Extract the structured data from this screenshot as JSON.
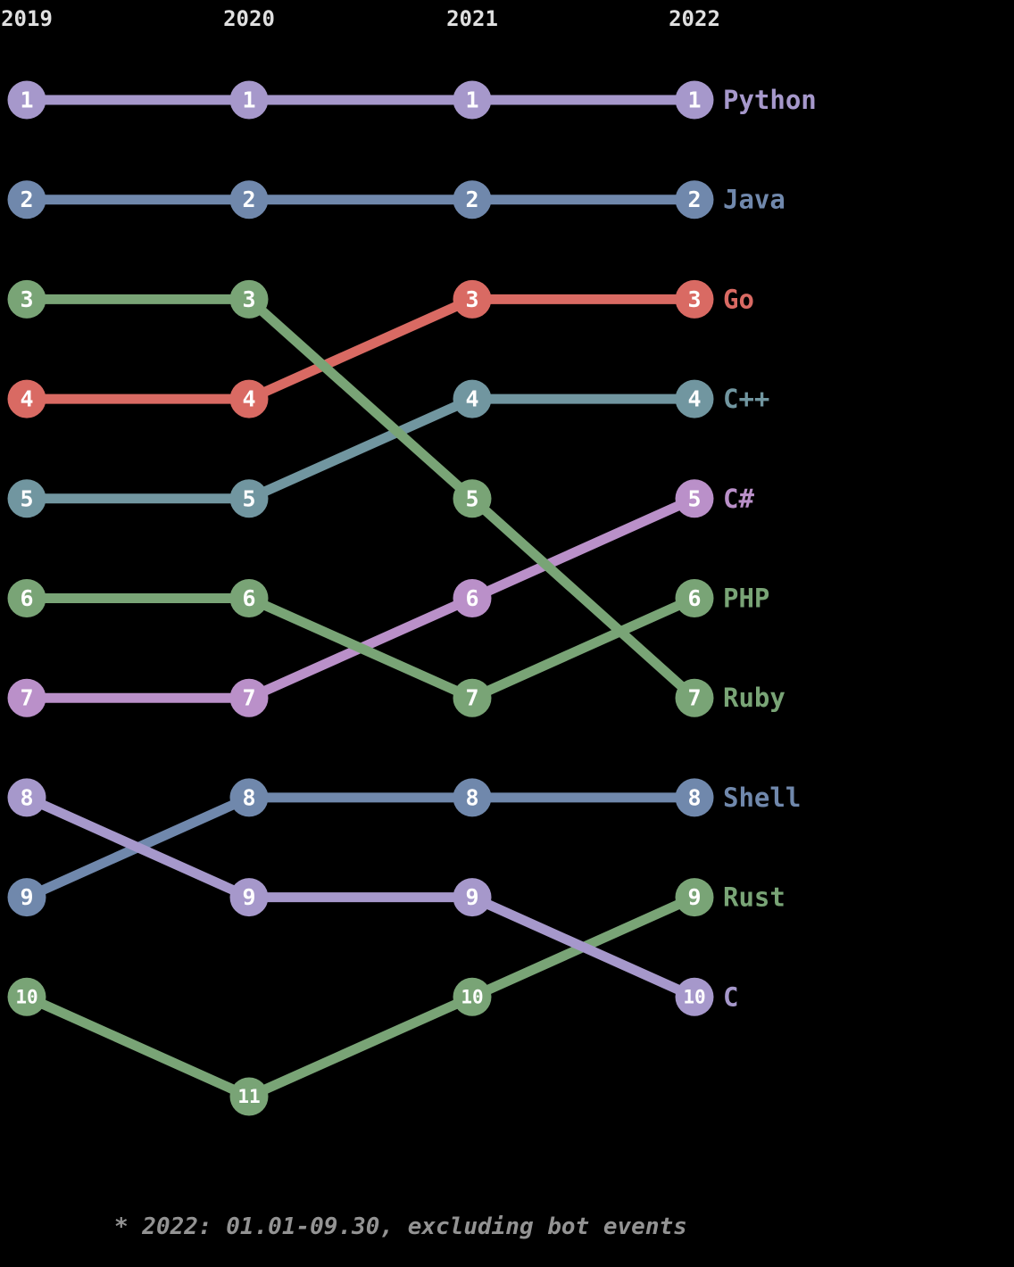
{
  "chart_data": {
    "type": "line",
    "variant": "bump-rank-chart",
    "x_labels": [
      "2019",
      "2020",
      "2021",
      "2022"
    ],
    "rank_axis": {
      "min": 1,
      "max": 11,
      "inverted": true
    },
    "grid": false,
    "legend_position": "right-of-last-point",
    "series": [
      {
        "name": "Python",
        "color": "#a698cb",
        "ranks": [
          1,
          1,
          1,
          1
        ]
      },
      {
        "name": "Java",
        "color": "#7088ac",
        "ranks": [
          2,
          2,
          2,
          2
        ]
      },
      {
        "name": "Go",
        "color": "#d96a63",
        "ranks": [
          4,
          4,
          3,
          3
        ]
      },
      {
        "name": "C++",
        "color": "#7196a0",
        "ranks": [
          5,
          5,
          4,
          4
        ]
      },
      {
        "name": "C#",
        "color": "#ba90c9",
        "ranks": [
          7,
          7,
          6,
          5
        ]
      },
      {
        "name": "PHP",
        "color": "#79a476",
        "ranks": [
          6,
          6,
          7,
          6
        ]
      },
      {
        "name": "Ruby",
        "color": "#79a476",
        "ranks": [
          3,
          3,
          5,
          7
        ]
      },
      {
        "name": "Shell",
        "color": "#7088ac",
        "ranks": [
          9,
          8,
          8,
          8
        ]
      },
      {
        "name": "Rust",
        "color": "#79a476",
        "ranks": [
          10,
          11,
          10,
          9
        ]
      },
      {
        "name": "C",
        "color": "#a698cb",
        "ranks": [
          8,
          9,
          9,
          10
        ]
      }
    ],
    "footnote": "* 2022: 01.01-09.30, excluding bot events"
  },
  "colors": {
    "background": "#000000",
    "year_label": "#e0e0e0",
    "footnote": "#939393",
    "dot_number": "#ffffff"
  }
}
